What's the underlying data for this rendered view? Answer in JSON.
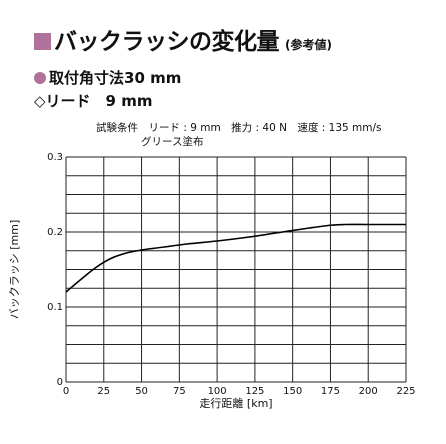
{
  "header": {
    "title": "バックラッシの変化量",
    "note": "(参考値)",
    "spec_mount": "取付角寸法30 mm",
    "spec_lead": "◇リード　9 mm",
    "conditions_line1": "試験条件　リード : 9 mm　推力 : 40 N　速度 : 135 mm/s",
    "conditions_line2": "グリース塗布",
    "accent_color": "#b0719a"
  },
  "chart_data": {
    "type": "line",
    "xlabel": "走行距離 [km]",
    "ylabel": "バックラッシ [mm]",
    "xlim": [
      0,
      225
    ],
    "ylim": [
      0,
      0.3
    ],
    "x_ticks": [
      "0",
      "25",
      "50",
      "75",
      "100",
      "125",
      "150",
      "175",
      "200",
      "225"
    ],
    "y_ticks": [
      "0",
      "0.1",
      "0.2",
      "0.3"
    ],
    "grid": true,
    "series": [
      {
        "x": [
          0,
          10,
          20,
          30,
          40,
          50,
          65,
          80,
          100,
          120,
          140,
          160,
          175,
          185,
          200,
          225
        ],
        "values": [
          0.12,
          0.137,
          0.153,
          0.165,
          0.172,
          0.176,
          0.18,
          0.184,
          0.188,
          0.193,
          0.199,
          0.205,
          0.209,
          0.21,
          0.21,
          0.21
        ]
      }
    ]
  }
}
